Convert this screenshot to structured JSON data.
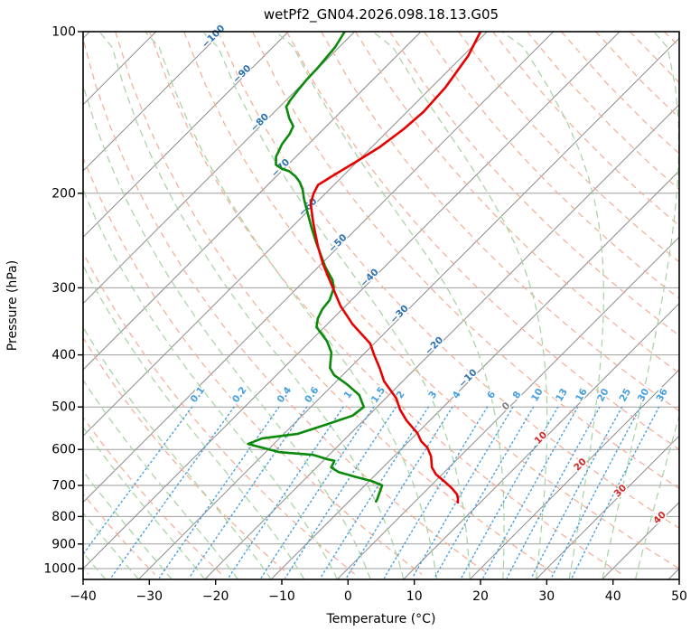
{
  "chart_data": {
    "type": "line",
    "subtype": "skew-t-log-p-sounding",
    "title": "wetPf2_GN04.2026.098.18.13.G05",
    "xlabel": "Temperature (°C)",
    "ylabel": "Pressure (hPa)",
    "xlim": [
      -40,
      50
    ],
    "pressure_lim": [
      100,
      1047
    ],
    "x_ticks": [
      -40,
      -30,
      -20,
      -10,
      0,
      10,
      20,
      30,
      40,
      50
    ],
    "pressure_ticks": [
      100,
      200,
      300,
      400,
      500,
      600,
      700,
      800,
      900,
      1000
    ],
    "grid": true,
    "legend": "none",
    "series": [
      {
        "name": "temperature",
        "color": "#e80000",
        "points_pressure_temp": [
          [
            100,
            -61.0
          ],
          [
            111,
            -59.2
          ],
          [
            127,
            -57.9
          ],
          [
            141,
            -57.5
          ],
          [
            152,
            -57.9
          ],
          [
            164,
            -58.8
          ],
          [
            175,
            -60.2
          ],
          [
            185,
            -61.5
          ],
          [
            193,
            -62.4
          ],
          [
            200,
            -61.8
          ],
          [
            209,
            -60.7
          ],
          [
            226,
            -57.6
          ],
          [
            241,
            -54.9
          ],
          [
            252,
            -53.0
          ],
          [
            271,
            -49.7
          ],
          [
            292,
            -46.0
          ],
          [
            324,
            -40.8
          ],
          [
            350,
            -36.3
          ],
          [
            381,
            -30.6
          ],
          [
            400,
            -28.3
          ],
          [
            423,
            -25.5
          ],
          [
            448,
            -22.8
          ],
          [
            481,
            -18.5
          ],
          [
            506,
            -16.1
          ],
          [
            530,
            -13.5
          ],
          [
            560,
            -9.9
          ],
          [
            579,
            -8.2
          ],
          [
            595,
            -6.3
          ],
          [
            618,
            -4.4
          ],
          [
            648,
            -2.6
          ],
          [
            668,
            -0.9
          ],
          [
            689,
            1.5
          ],
          [
            708,
            3.5
          ],
          [
            728,
            5.3
          ],
          [
            742,
            6.1
          ],
          [
            753,
            6.6
          ]
        ]
      },
      {
        "name": "dewpoint",
        "color": "#0a8a0a",
        "points_pressure_temp": [
          [
            100,
            -81.5
          ],
          [
            107,
            -80.6
          ],
          [
            111,
            -80.4
          ],
          [
            117,
            -80.1
          ],
          [
            123,
            -80.0
          ],
          [
            129,
            -79.7
          ],
          [
            134,
            -79.4
          ],
          [
            138,
            -79.0
          ],
          [
            145,
            -76.8
          ],
          [
            150,
            -75.0
          ],
          [
            155,
            -74.4
          ],
          [
            162,
            -74.0
          ],
          [
            171,
            -73.0
          ],
          [
            177,
            -71.8
          ],
          [
            180,
            -70.3
          ],
          [
            182,
            -68.8
          ],
          [
            186,
            -67.1
          ],
          [
            191,
            -65.5
          ],
          [
            197,
            -64.0
          ],
          [
            205,
            -62.4
          ],
          [
            215,
            -60.3
          ],
          [
            232,
            -56.9
          ],
          [
            247,
            -54.0
          ],
          [
            274,
            -49.0
          ],
          [
            290,
            -45.9
          ],
          [
            300,
            -44.5
          ],
          [
            316,
            -43.3
          ],
          [
            329,
            -43.0
          ],
          [
            342,
            -42.3
          ],
          [
            355,
            -41.2
          ],
          [
            377,
            -37.5
          ],
          [
            396,
            -35.1
          ],
          [
            423,
            -33.0
          ],
          [
            436,
            -31.3
          ],
          [
            454,
            -27.9
          ],
          [
            475,
            -24.5
          ],
          [
            500,
            -22.0
          ],
          [
            519,
            -22.4
          ],
          [
            540,
            -25.1
          ],
          [
            561,
            -27.9
          ],
          [
            572,
            -32.6
          ],
          [
            586,
            -33.9
          ],
          [
            607,
            -27.9
          ],
          [
            614,
            -22.4
          ],
          [
            626,
            -19.5
          ],
          [
            630,
            -18.3
          ],
          [
            648,
            -17.8
          ],
          [
            661,
            -16.0
          ],
          [
            674,
            -12.9
          ],
          [
            687,
            -9.6
          ],
          [
            700,
            -7.4
          ],
          [
            722,
            -6.7
          ],
          [
            745,
            -6.0
          ],
          [
            750,
            -5.9
          ]
        ]
      }
    ],
    "isotherms": {
      "min": -120,
      "max": 50,
      "step": 10,
      "color": "#8c8c8c",
      "labels": [
        {
          "value": -100,
          "at_pressure": 103,
          "color": "#2d72b0"
        },
        {
          "value": -90,
          "at_pressure": 121,
          "color": "#2d72b0"
        },
        {
          "value": -80,
          "at_pressure": 149,
          "color": "#2d72b0"
        },
        {
          "value": -70,
          "at_pressure": 181,
          "color": "#2d72b0"
        },
        {
          "value": -60,
          "at_pressure": 214,
          "color": "#2d72b0"
        },
        {
          "value": -50,
          "at_pressure": 250,
          "color": "#2d72b0"
        },
        {
          "value": -40,
          "at_pressure": 290,
          "color": "#2d72b0"
        },
        {
          "value": -30,
          "at_pressure": 339,
          "color": "#2d72b0"
        },
        {
          "value": -20,
          "at_pressure": 388,
          "color": "#2d72b0"
        },
        {
          "value": -10,
          "at_pressure": 446,
          "color": "#2d72b0"
        },
        {
          "value": 0,
          "at_pressure": 503,
          "color": "#7f7f7f"
        },
        {
          "value": 10,
          "at_pressure": 576,
          "color": "#d62728"
        },
        {
          "value": 20,
          "at_pressure": 646,
          "color": "#d62728"
        },
        {
          "value": 30,
          "at_pressure": 723,
          "color": "#d62728"
        },
        {
          "value": 40,
          "at_pressure": 811,
          "color": "#d62728"
        }
      ]
    },
    "dry_adiabats": {
      "theta_min": -40,
      "theta_max": 190,
      "step": 10,
      "color": "#f6ab93"
    },
    "moist_adiabats": {
      "start_temp_min": -40,
      "start_temp_max": 45,
      "step": 5,
      "color": "#a5d2a0"
    },
    "mixing_ratio_lines": {
      "values_g_per_kg": [
        0.1,
        0.2,
        0.4,
        0.6,
        1,
        1.5,
        2,
        3,
        4,
        6,
        8,
        10,
        13,
        16,
        20,
        25,
        30,
        36
      ],
      "top_pressure": 500,
      "label_pressure": 478,
      "color": "#459fe0",
      "label_color": "#459fe0"
    }
  }
}
